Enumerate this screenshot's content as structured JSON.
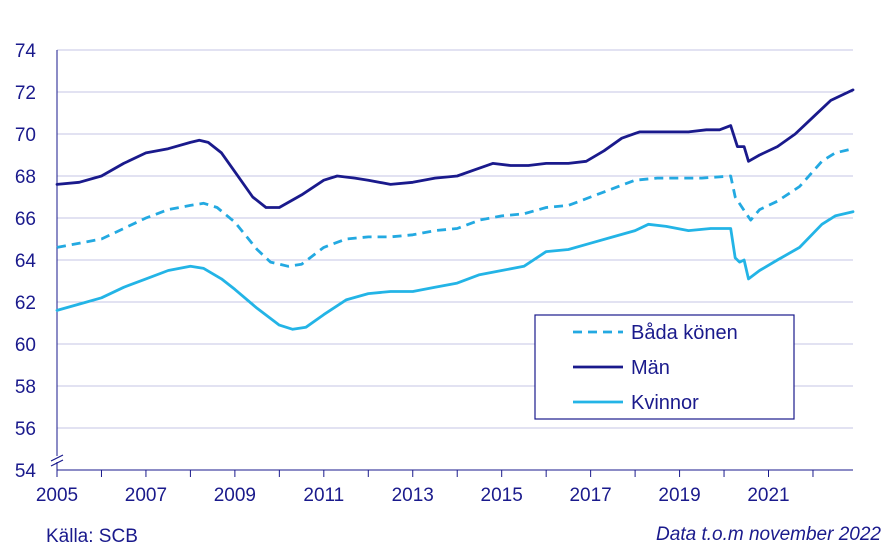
{
  "chart_data": {
    "type": "line",
    "x_unit": "year",
    "xlim": [
      2005,
      2022.9
    ],
    "ylim": [
      54,
      74
    ],
    "y_ticks": [
      54,
      56,
      58,
      60,
      62,
      64,
      66,
      68,
      70,
      72,
      74
    ],
    "x_ticks": [
      "2005",
      "2007",
      "2009",
      "2011",
      "2013",
      "2015",
      "2017",
      "2019",
      "2021"
    ],
    "grid": true,
    "axis_break": true,
    "legend_position": "bottom-right",
    "series": [
      {
        "name": "Båda könen",
        "color": "#23a9e1",
        "dash": "dashed",
        "points": [
          [
            2005,
            64.6
          ],
          [
            2005.5,
            64.8
          ],
          [
            2006,
            65.0
          ],
          [
            2006.5,
            65.5
          ],
          [
            2007,
            66.0
          ],
          [
            2007.5,
            66.4
          ],
          [
            2008,
            66.6
          ],
          [
            2008.3,
            66.7
          ],
          [
            2008.6,
            66.5
          ],
          [
            2009,
            65.8
          ],
          [
            2009.5,
            64.5
          ],
          [
            2009.8,
            63.9
          ],
          [
            2010.2,
            63.7
          ],
          [
            2010.5,
            63.8
          ],
          [
            2011,
            64.6
          ],
          [
            2011.5,
            65.0
          ],
          [
            2012,
            65.1
          ],
          [
            2012.5,
            65.1
          ],
          [
            2013,
            65.2
          ],
          [
            2013.5,
            65.4
          ],
          [
            2014,
            65.5
          ],
          [
            2014.5,
            65.9
          ],
          [
            2015,
            66.1
          ],
          [
            2015.5,
            66.2
          ],
          [
            2016,
            66.5
          ],
          [
            2016.5,
            66.6
          ],
          [
            2017,
            67.0
          ],
          [
            2017.5,
            67.4
          ],
          [
            2018,
            67.8
          ],
          [
            2018.5,
            67.9
          ],
          [
            2019,
            67.9
          ],
          [
            2019.5,
            67.9
          ],
          [
            2020.15,
            68.0
          ],
          [
            2020.25,
            67.0
          ],
          [
            2020.5,
            66.2
          ],
          [
            2020.6,
            65.9
          ],
          [
            2020.8,
            66.4
          ],
          [
            2021.2,
            66.8
          ],
          [
            2021.7,
            67.5
          ],
          [
            2022.2,
            68.7
          ],
          [
            2022.5,
            69.1
          ],
          [
            2022.9,
            69.3
          ]
        ]
      },
      {
        "name": "Män",
        "color": "#1a1a8c",
        "dash": "solid",
        "points": [
          [
            2005,
            67.6
          ],
          [
            2005.5,
            67.7
          ],
          [
            2006,
            68.0
          ],
          [
            2006.5,
            68.6
          ],
          [
            2007,
            69.1
          ],
          [
            2007.5,
            69.3
          ],
          [
            2008,
            69.6
          ],
          [
            2008.2,
            69.7
          ],
          [
            2008.4,
            69.6
          ],
          [
            2008.7,
            69.1
          ],
          [
            2009,
            68.2
          ],
          [
            2009.4,
            67.0
          ],
          [
            2009.7,
            66.5
          ],
          [
            2010,
            66.5
          ],
          [
            2010.5,
            67.1
          ],
          [
            2011,
            67.8
          ],
          [
            2011.3,
            68.0
          ],
          [
            2011.7,
            67.9
          ],
          [
            2012,
            67.8
          ],
          [
            2012.5,
            67.6
          ],
          [
            2013,
            67.7
          ],
          [
            2013.5,
            67.9
          ],
          [
            2014,
            68.0
          ],
          [
            2014.4,
            68.3
          ],
          [
            2014.8,
            68.6
          ],
          [
            2015.2,
            68.5
          ],
          [
            2015.6,
            68.5
          ],
          [
            2016,
            68.6
          ],
          [
            2016.5,
            68.6
          ],
          [
            2016.9,
            68.7
          ],
          [
            2017.3,
            69.2
          ],
          [
            2017.7,
            69.8
          ],
          [
            2018.1,
            70.1
          ],
          [
            2018.5,
            70.1
          ],
          [
            2018.8,
            70.1
          ],
          [
            2019.2,
            70.1
          ],
          [
            2019.6,
            70.2
          ],
          [
            2019.9,
            70.2
          ],
          [
            2020.15,
            70.4
          ],
          [
            2020.3,
            69.4
          ],
          [
            2020.45,
            69.4
          ],
          [
            2020.55,
            68.7
          ],
          [
            2020.8,
            69.0
          ],
          [
            2021.2,
            69.4
          ],
          [
            2021.6,
            70.0
          ],
          [
            2022,
            70.8
          ],
          [
            2022.4,
            71.6
          ],
          [
            2022.9,
            72.1
          ]
        ]
      },
      {
        "name": "Kvinnor",
        "color": "#23b4e6",
        "dash": "solid",
        "points": [
          [
            2005,
            61.6
          ],
          [
            2005.5,
            61.9
          ],
          [
            2006,
            62.2
          ],
          [
            2006.5,
            62.7
          ],
          [
            2007,
            63.1
          ],
          [
            2007.5,
            63.5
          ],
          [
            2008,
            63.7
          ],
          [
            2008.3,
            63.6
          ],
          [
            2008.7,
            63.1
          ],
          [
            2009,
            62.6
          ],
          [
            2009.5,
            61.7
          ],
          [
            2010,
            60.9
          ],
          [
            2010.3,
            60.7
          ],
          [
            2010.6,
            60.8
          ],
          [
            2011,
            61.4
          ],
          [
            2011.5,
            62.1
          ],
          [
            2012,
            62.4
          ],
          [
            2012.5,
            62.5
          ],
          [
            2013,
            62.5
          ],
          [
            2013.5,
            62.7
          ],
          [
            2014,
            62.9
          ],
          [
            2014.5,
            63.3
          ],
          [
            2015,
            63.5
          ],
          [
            2015.5,
            63.7
          ],
          [
            2016,
            64.4
          ],
          [
            2016.5,
            64.5
          ],
          [
            2017,
            64.8
          ],
          [
            2017.5,
            65.1
          ],
          [
            2018,
            65.4
          ],
          [
            2018.3,
            65.7
          ],
          [
            2018.7,
            65.6
          ],
          [
            2019.2,
            65.4
          ],
          [
            2019.7,
            65.5
          ],
          [
            2020.15,
            65.5
          ],
          [
            2020.25,
            64.1
          ],
          [
            2020.35,
            63.9
          ],
          [
            2020.45,
            64.0
          ],
          [
            2020.55,
            63.1
          ],
          [
            2020.8,
            63.5
          ],
          [
            2021.2,
            64.0
          ],
          [
            2021.7,
            64.6
          ],
          [
            2022.2,
            65.7
          ],
          [
            2022.5,
            66.1
          ],
          [
            2022.9,
            66.3
          ]
        ]
      }
    ]
  },
  "footer": {
    "source": "Källa: SCB",
    "note": "Data t.o.m november 2022"
  }
}
